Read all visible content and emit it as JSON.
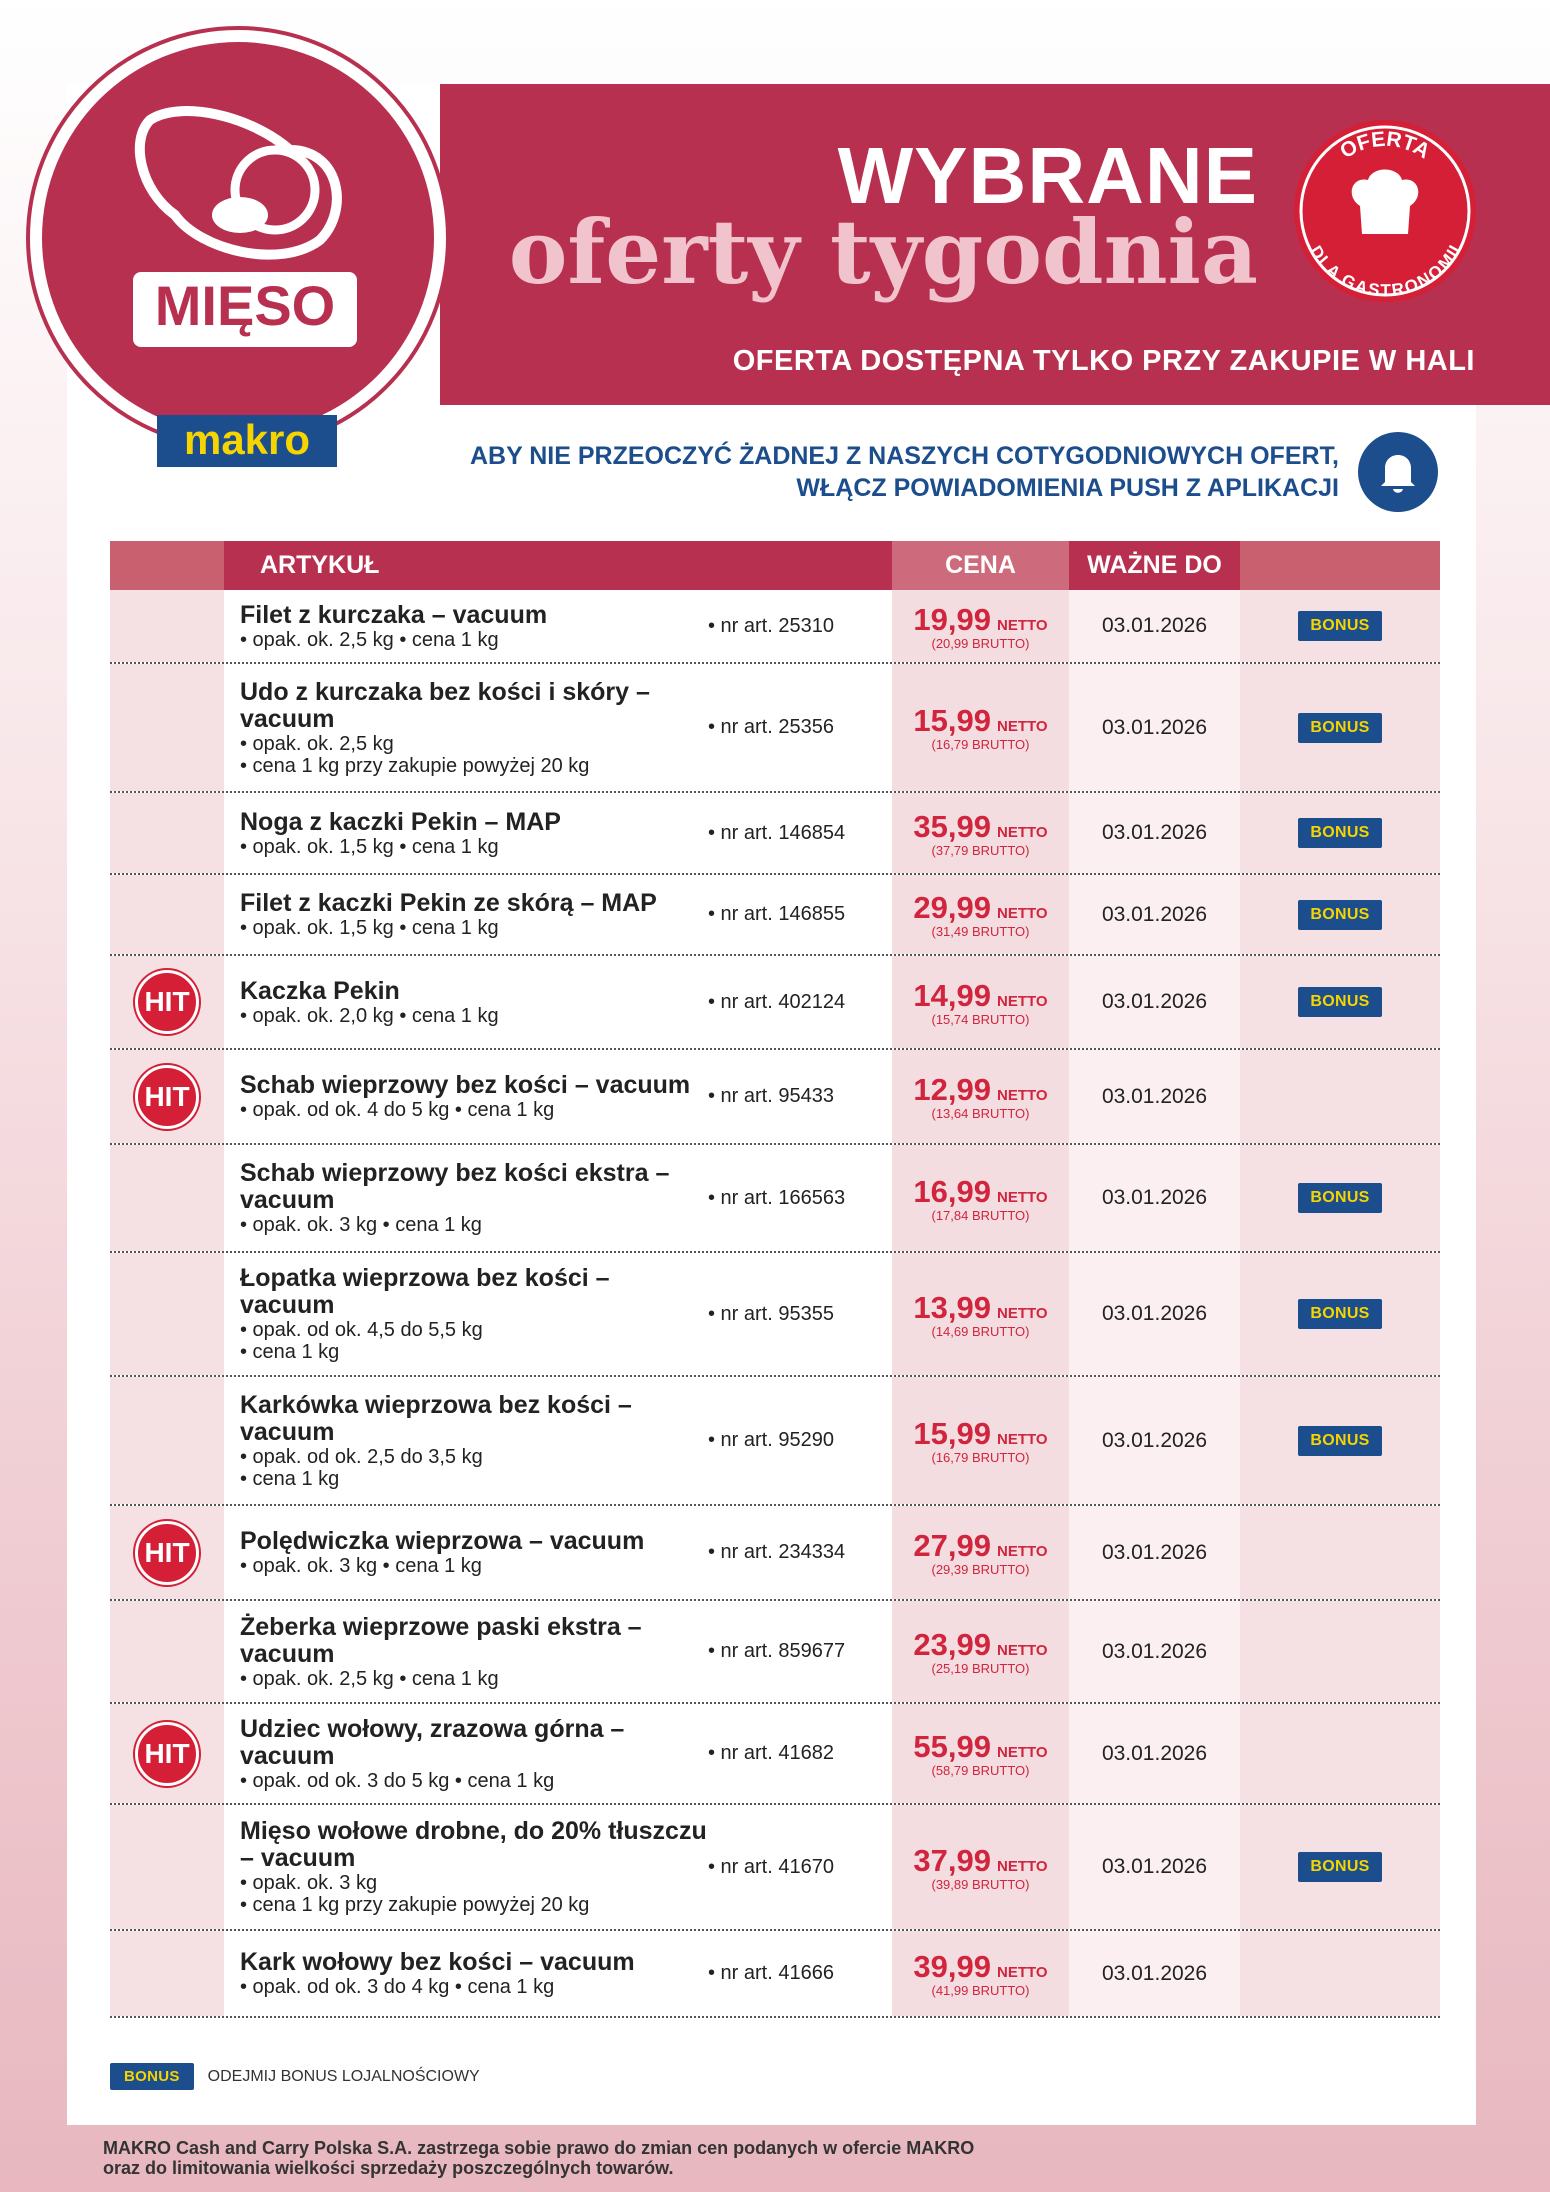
{
  "header": {
    "badge": "MIĘSO",
    "logo": "makro",
    "title": "WYBRANE",
    "subtitle": "oferty tygodnia",
    "note": "OFERTA DOSTĘPNA TYLKO PRZY ZAKUPIE W HALI",
    "stamp_top": "OFERTA",
    "stamp_bottom": "DLA GASTRONOMII",
    "push": [
      "ABY NIE PRZEOCZYĆ ŻADNEJ Z NASZYCH COTYGODNIOWYCH OFERT,",
      "WŁĄCZ POWIADOMIENIA PUSH Z APLIKACJI"
    ]
  },
  "table": {
    "columns": [
      "ARTYKUŁ",
      "CENA",
      "WAŻNE DO"
    ],
    "rows": [
      {
        "name": "Filet z kurczaka – vacuum",
        "details": [
          "• opak. ok. 2,5 kg • cena 1 kg"
        ],
        "art": "• nr art. 25310",
        "price": "19,99",
        "netto": "NETTO",
        "brutto": "(20,99 BRUTTO)",
        "date": "03.01.2026",
        "bonus": "BONUS"
      },
      {
        "name": "Udo z kurczaka bez kości i skóry – vacuum",
        "details": [
          "• opak. ok. 2,5 kg",
          "• cena 1 kg przy zakupie powyżej 20 kg"
        ],
        "art": "• nr art. 25356",
        "price": "15,99",
        "netto": "NETTO",
        "brutto": "(16,79 BRUTTO)",
        "date": "03.01.2026",
        "bonus": "BONUS"
      },
      {
        "name": "Noga z kaczki Pekin – MAP",
        "details": [
          "• opak. ok. 1,5 kg • cena 1 kg"
        ],
        "art": "• nr art. 146854",
        "price": "35,99",
        "netto": "NETTO",
        "brutto": "(37,79 BRUTTO)",
        "date": "03.01.2026",
        "bonus": "BONUS"
      },
      {
        "name": "Filet z kaczki Pekin ze skórą – MAP",
        "details": [
          "• opak. ok. 1,5 kg • cena 1 kg"
        ],
        "art": "• nr art. 146855",
        "price": "29,99",
        "netto": "NETTO",
        "brutto": "(31,49 BRUTTO)",
        "date": "03.01.2026",
        "bonus": "BONUS"
      },
      {
        "badge": "HIT",
        "name": "Kaczka Pekin",
        "details": [
          "• opak. ok. 2,0 kg • cena 1 kg"
        ],
        "art": "• nr art. 402124",
        "price": "14,99",
        "netto": "NETTO",
        "brutto": "(15,74 BRUTTO)",
        "date": "03.01.2026",
        "bonus": "BONUS"
      },
      {
        "badge": "HIT",
        "name": "Schab wieprzowy bez kości – vacuum",
        "details": [
          "• opak. od ok. 4 do 5 kg • cena 1 kg"
        ],
        "art": "• nr art. 95433",
        "price": "12,99",
        "netto": "NETTO",
        "brutto": "(13,64 BRUTTO)",
        "date": "03.01.2026"
      },
      {
        "name": "Schab wieprzowy bez kości ekstra – vacuum",
        "details": [
          "• opak. ok. 3 kg • cena 1 kg"
        ],
        "art": "• nr art. 166563",
        "price": "16,99",
        "netto": "NETTO",
        "brutto": "(17,84 BRUTTO)",
        "date": "03.01.2026",
        "bonus": "BONUS"
      },
      {
        "name": "Łopatka wieprzowa bez kości – vacuum",
        "details": [
          "• opak. od ok. 4,5 do 5,5 kg",
          "• cena 1 kg"
        ],
        "art": "• nr art. 95355",
        "price": "13,99",
        "netto": "NETTO",
        "brutto": "(14,69 BRUTTO)",
        "date": "03.01.2026",
        "bonus": "BONUS"
      },
      {
        "name": "Karkówka wieprzowa bez kości – vacuum",
        "details": [
          "• opak. od ok. 2,5 do 3,5 kg",
          "• cena 1 kg"
        ],
        "art": "• nr art. 95290",
        "price": "15,99",
        "netto": "NETTO",
        "brutto": "(16,79 BRUTTO)",
        "date": "03.01.2026",
        "bonus": "BONUS"
      },
      {
        "badge": "HIT",
        "name": "Polędwiczka wieprzowa – vacuum",
        "details": [
          "• opak. ok. 3 kg • cena 1 kg"
        ],
        "art": "• nr art. 234334",
        "price": "27,99",
        "netto": "NETTO",
        "brutto": "(29,39 BRUTTO)",
        "date": "03.01.2026"
      },
      {
        "name": "Żeberka wieprzowe paski ekstra – vacuum",
        "details": [
          "• opak. ok. 2,5 kg • cena 1 kg"
        ],
        "art": "• nr art. 859677",
        "price": "23,99",
        "netto": "NETTO",
        "brutto": "(25,19 BRUTTO)",
        "date": "03.01.2026"
      },
      {
        "badge": "HIT",
        "name": "Udziec wołowy, zrazowa górna – vacuum",
        "details": [
          "• opak. od ok. 3 do 5 kg • cena 1 kg"
        ],
        "art": "• nr art. 41682",
        "price": "55,99",
        "netto": "NETTO",
        "brutto": "(58,79 BRUTTO)",
        "date": "03.01.2026"
      },
      {
        "name": "Mięso wołowe drobne, do 20% tłuszczu – vacuum",
        "details": [
          "• opak. ok. 3 kg",
          "• cena 1 kg przy zakupie powyżej 20 kg"
        ],
        "art": "• nr art. 41670",
        "price": "37,99",
        "netto": "NETTO",
        "brutto": "(39,89 BRUTTO)",
        "date": "03.01.2026",
        "bonus": "BONUS"
      },
      {
        "name": "Kark wołowy bez kości – vacuum",
        "details": [
          "• opak. od ok. 3 do 4 kg • cena 1 kg"
        ],
        "art": "• nr art. 41666",
        "price": "39,99",
        "netto": "NETTO",
        "brutto": "(41,99 BRUTTO)",
        "date": "03.01.2026"
      }
    ]
  },
  "footer": {
    "legend_badge": "BONUS",
    "legend": "ODEJMIJ BONUS LOJALNOŚCIOWY",
    "disclaimer": [
      "MAKRO Cash and Carry Polska S.A. zastrzega sobie prawo do zmian cen podanych w ofercie MAKRO",
      "oraz do limitowania wielkości sprzedaży poszczególnych towarów."
    ]
  }
}
